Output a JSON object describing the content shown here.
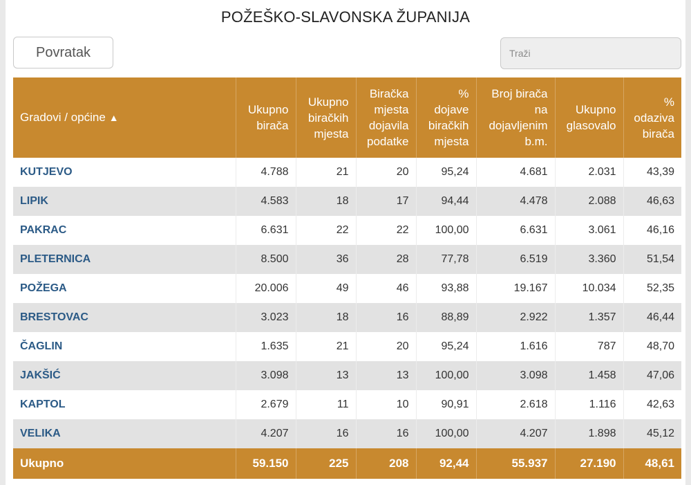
{
  "title": "POŽEŠKO-SLAVONSKA ŽUPANIJA",
  "back_label": "Povratak",
  "search": {
    "placeholder": "Traži"
  },
  "columns": [
    "Gradovi / općine",
    "Ukupno birača",
    "Ukupno biračkih mjesta",
    "Biračka mjesta dojavila podatke",
    "% dojave biračkih mjesta",
    "Broj birača na dojavljenim b.m.",
    "Ukupno glasovalo",
    "% odaziva birača"
  ],
  "sort_indicator": "▲",
  "rows": [
    [
      "KUTJEVO",
      "4.788",
      "21",
      "20",
      "95,24",
      "4.681",
      "2.031",
      "43,39"
    ],
    [
      "LIPIK",
      "4.583",
      "18",
      "17",
      "94,44",
      "4.478",
      "2.088",
      "46,63"
    ],
    [
      "PAKRAC",
      "6.631",
      "22",
      "22",
      "100,00",
      "6.631",
      "3.061",
      "46,16"
    ],
    [
      "PLETERNICA",
      "8.500",
      "36",
      "28",
      "77,78",
      "6.519",
      "3.360",
      "51,54"
    ],
    [
      "POŽEGA",
      "20.006",
      "49",
      "46",
      "93,88",
      "19.167",
      "10.034",
      "52,35"
    ],
    [
      "BRESTOVAC",
      "3.023",
      "18",
      "16",
      "88,89",
      "2.922",
      "1.357",
      "46,44"
    ],
    [
      "ČAGLIN",
      "1.635",
      "21",
      "20",
      "95,24",
      "1.616",
      "787",
      "48,70"
    ],
    [
      "JAKŠIĆ",
      "3.098",
      "13",
      "13",
      "100,00",
      "3.098",
      "1.458",
      "47,06"
    ],
    [
      "KAPTOL",
      "2.679",
      "11",
      "10",
      "90,91",
      "2.618",
      "1.116",
      "42,63"
    ],
    [
      "VELIKA",
      "4.207",
      "16",
      "16",
      "100,00",
      "4.207",
      "1.898",
      "45,12"
    ]
  ],
  "totals": [
    "Ukupno",
    "59.150",
    "225",
    "208",
    "92,44",
    "55.937",
    "27.190",
    "48,61"
  ],
  "colors": {
    "header_bg": "#c8892f",
    "link": "#2b5a86",
    "row_alt": "#e2e2e2"
  }
}
